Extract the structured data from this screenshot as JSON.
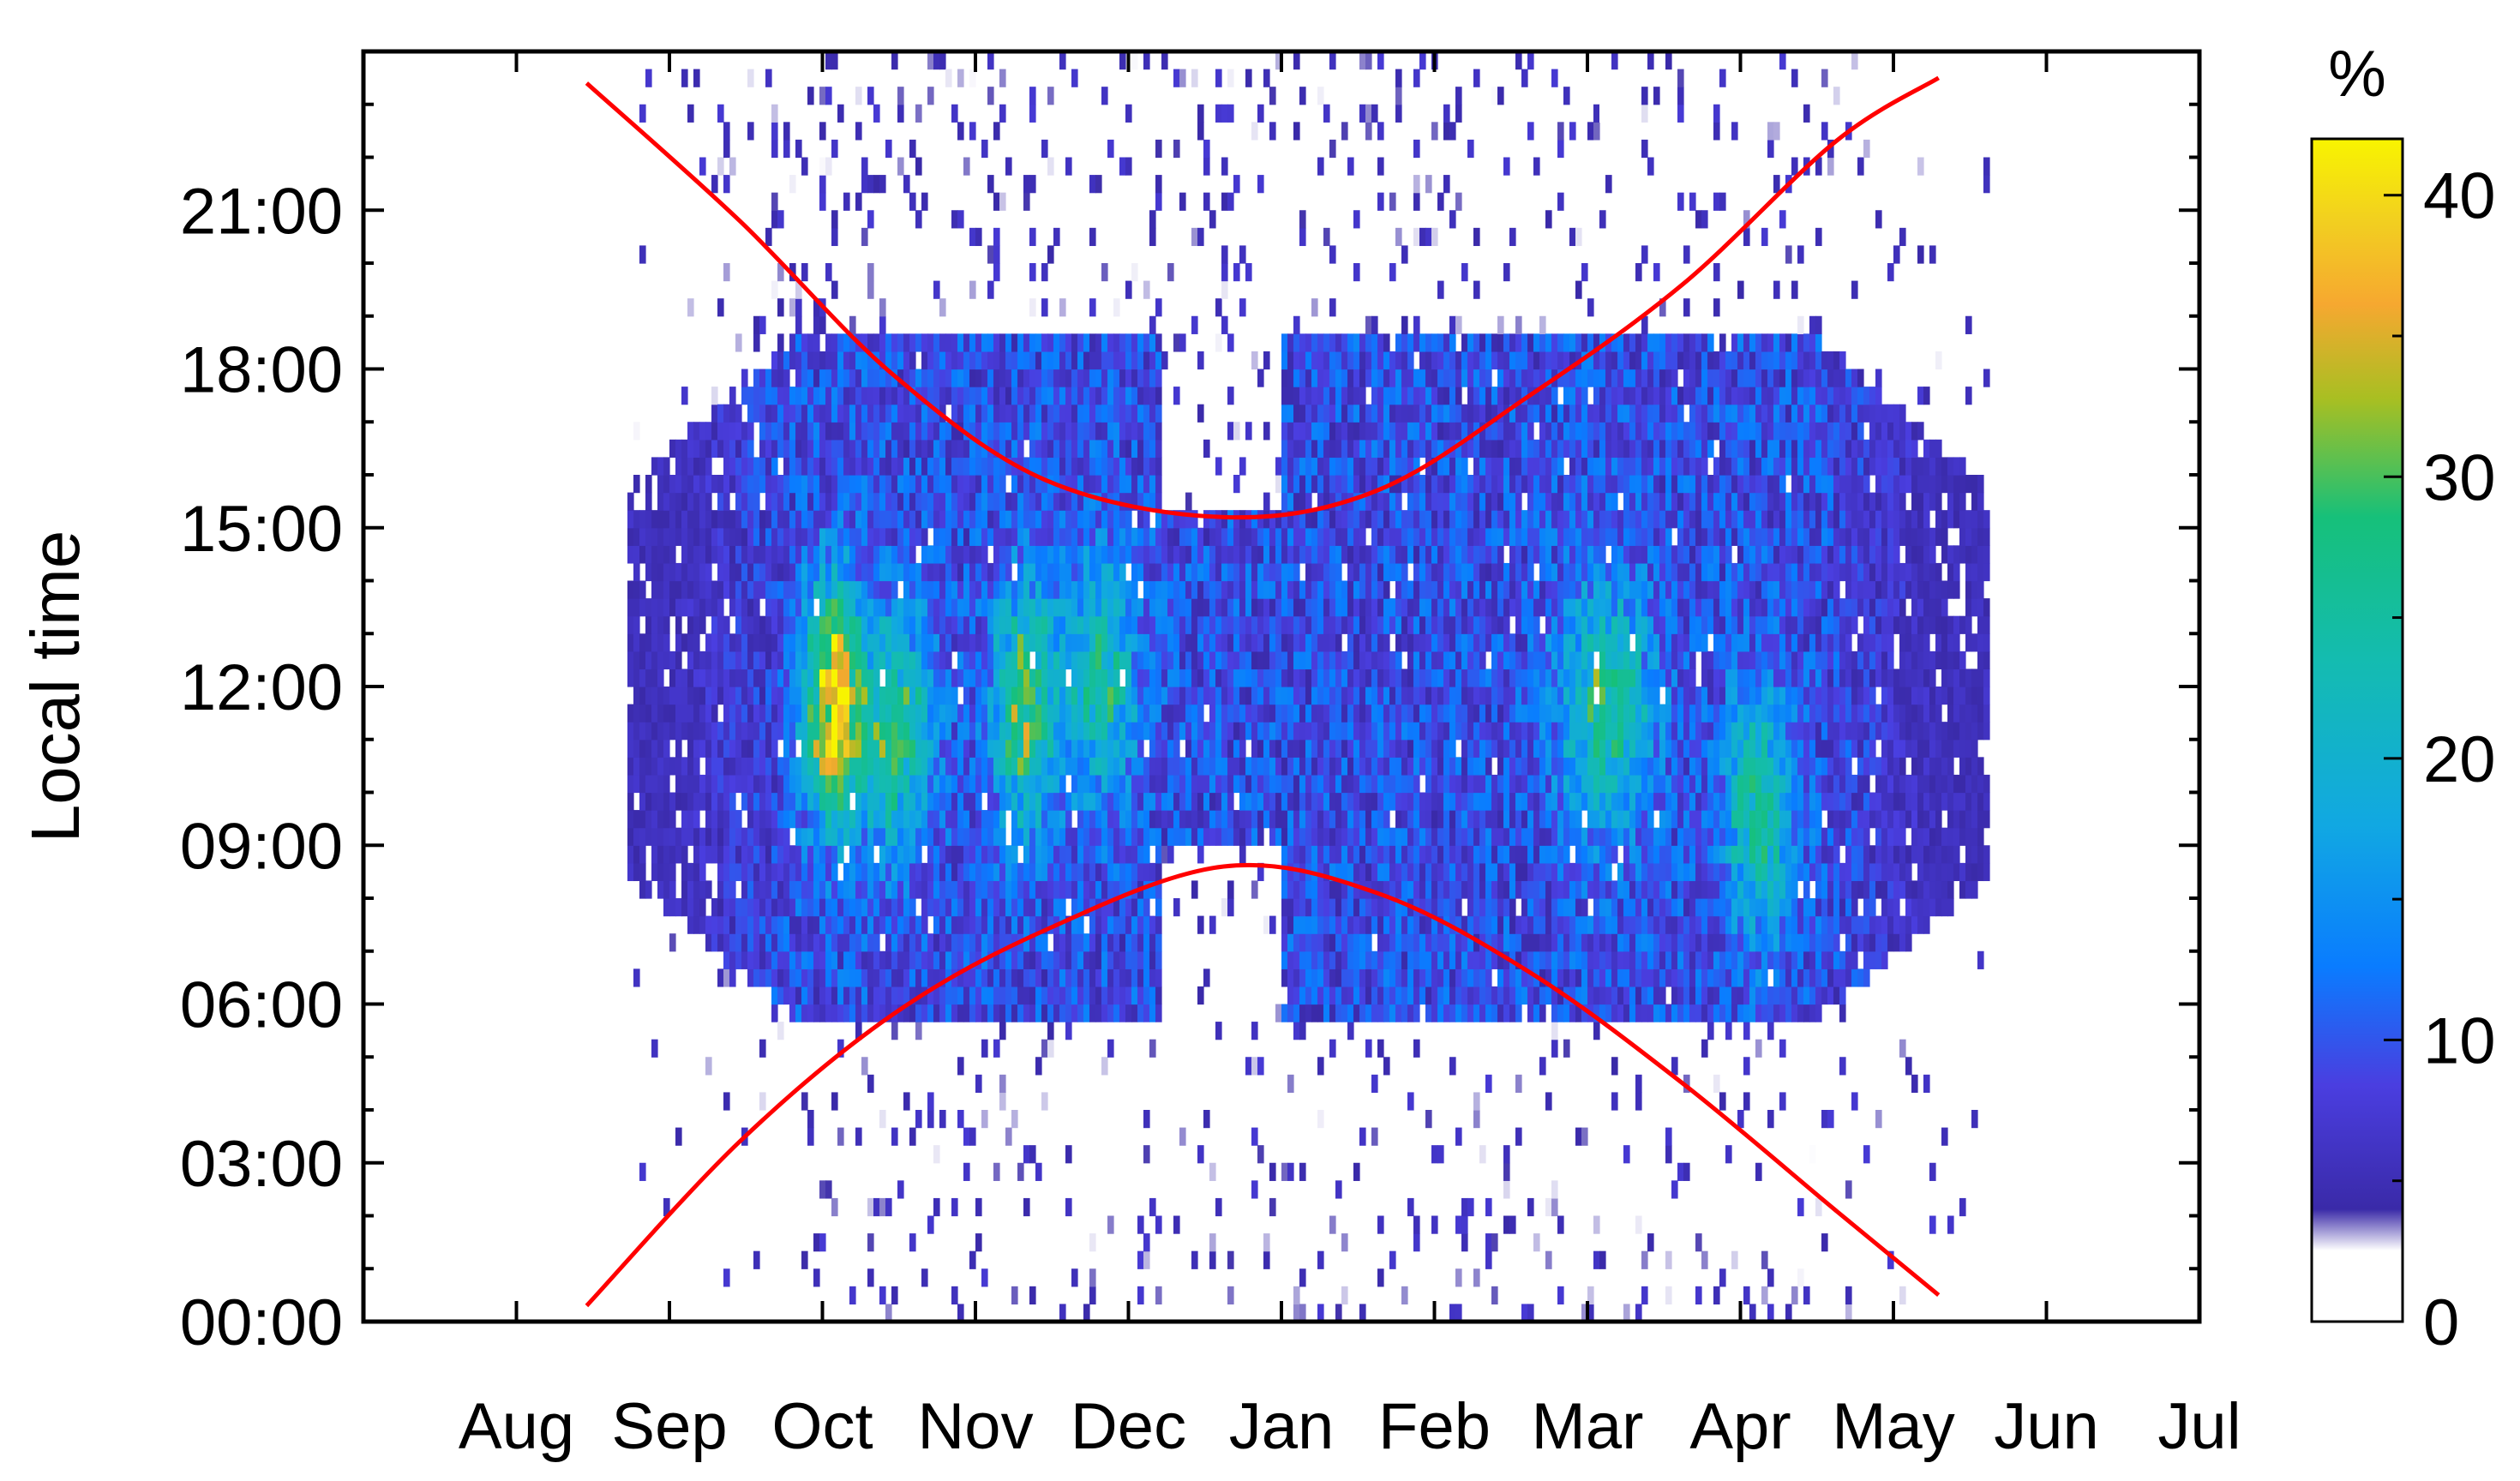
{
  "chart_data": {
    "type": "heatmap",
    "title": "",
    "xlabel": "",
    "ylabel": "Local time",
    "x_tick_labels": [
      "Aug",
      "Sep",
      "Oct",
      "Nov",
      "Dec",
      "Jan",
      "Feb",
      "Mar",
      "Apr",
      "May",
      "Jun",
      "Jul"
    ],
    "y_tick_labels": [
      "00:00",
      "03:00",
      "06:00",
      "09:00",
      "12:00",
      "15:00",
      "18:00",
      "21:00"
    ],
    "y_tick_hours": [
      0,
      3,
      6,
      9,
      12,
      15,
      18,
      21
    ],
    "xlim_months_from_jul": [
      0,
      12
    ],
    "ylim_hours": [
      0,
      24
    ],
    "colorbar": {
      "label": "%",
      "ticks": [
        0,
        10,
        20,
        30,
        40
      ],
      "range": [
        0,
        42
      ],
      "colormap": "white-purple-blue-green-yellow",
      "colors": [
        "#ffffff",
        "#3a2aa8",
        "#0a7cff",
        "#11b8d0",
        "#16c07a",
        "#bcc21a",
        "#f6c22a",
        "#f8f400"
      ]
    },
    "heatmap_summary": {
      "active_months": [
        "Sep",
        "Oct",
        "Nov",
        "Dec",
        "Jan",
        "Feb",
        "Mar",
        "Apr",
        "May"
      ],
      "dense_hours": [
        6,
        17
      ],
      "peak_value_percent": 40,
      "peak_period": "early Oct, 09:00-13:00"
    },
    "series": [
      {
        "type": "line",
        "color": "#ff0000",
        "points": [
          {
            "x": "Aug 15",
            "y": 23.4
          },
          {
            "x": "Sep 15",
            "y": 20.8
          },
          {
            "x": "Oct 15",
            "y": 17.9
          },
          {
            "x": "Nov 15",
            "y": 15.9
          },
          {
            "x": "Dec 20",
            "y": 15.2
          },
          {
            "x": "Jan 20",
            "y": 15.7
          },
          {
            "x": "Feb 20",
            "y": 17.5
          },
          {
            "x": "Mar 20",
            "y": 19.6
          },
          {
            "x": "Apr 20",
            "y": 22.3
          },
          {
            "x": "May 10",
            "y": 23.5
          }
        ]
      },
      {
        "type": "line",
        "color": "#ff0000",
        "points": [
          {
            "x": "Aug 15",
            "y": 0.3
          },
          {
            "x": "Sep 15",
            "y": 3.4
          },
          {
            "x": "Oct 15",
            "y": 5.8
          },
          {
            "x": "Nov 15",
            "y": 7.4
          },
          {
            "x": "Dec 20",
            "y": 8.6
          },
          {
            "x": "Jan 20",
            "y": 8.1
          },
          {
            "x": "Feb 20",
            "y": 6.6
          },
          {
            "x": "Mar 20",
            "y": 4.5
          },
          {
            "x": "Apr 20",
            "y": 2.1
          },
          {
            "x": "May 10",
            "y": 0.5
          }
        ]
      }
    ]
  }
}
